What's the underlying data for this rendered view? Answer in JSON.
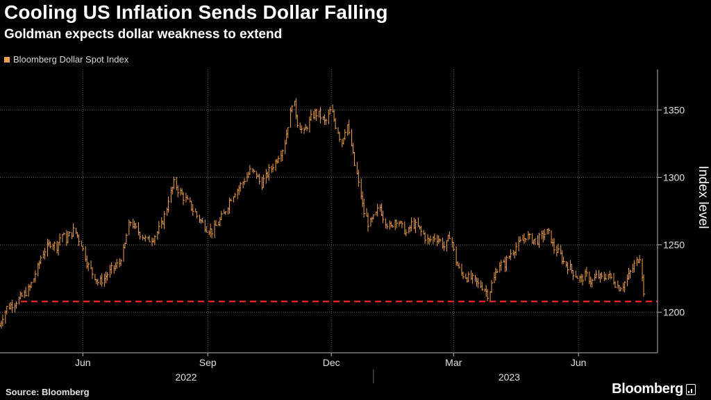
{
  "header": {
    "title": "Cooling US Inflation Sends Dollar Falling",
    "subtitle": "Goldman expects dollar weakness to extend"
  },
  "legend": {
    "label": "Bloomberg Dollar Spot Index"
  },
  "footer": {
    "source": "Source: Bloomberg",
    "brand": "Bloomberg"
  },
  "colors": {
    "series": "#f0a050",
    "reference_line": "#e02424",
    "background": "#000000",
    "grid": "#666666"
  },
  "chart_data": {
    "type": "line",
    "title": "Cooling US Inflation Sends Dollar Falling",
    "subtitle": "Goldman expects dollar weakness to extend",
    "ylabel": "Index level",
    "xlabel": "",
    "ylim": [
      1170,
      1380
    ],
    "xlim": [
      "2022-04-01",
      "2023-07-20"
    ],
    "y_ticks": [
      1200,
      1250,
      1300,
      1350
    ],
    "x_ticks": [
      {
        "label": "Jun",
        "date": "2022-06-01"
      },
      {
        "label": "Sep",
        "date": "2022-09-01"
      },
      {
        "label": "Dec",
        "date": "2022-12-01"
      },
      {
        "label": "Mar",
        "date": "2023-03-01"
      },
      {
        "label": "Jun",
        "date": "2023-06-01"
      }
    ],
    "year_labels": [
      {
        "label": "2022",
        "from": "2022-04-01",
        "to": "2022-12-31"
      },
      {
        "label": "2023",
        "from": "2023-01-01",
        "to": "2023-07-20"
      }
    ],
    "grid": true,
    "legend_position": "top-left",
    "reference_line": {
      "y": 1208,
      "style": "dashed"
    },
    "series": [
      {
        "name": "Bloomberg Dollar Spot Index",
        "style": "bars",
        "points": [
          [
            "2022-04-01",
            1190
          ],
          [
            "2022-04-06",
            1203
          ],
          [
            "2022-04-12",
            1207
          ],
          [
            "2022-04-18",
            1212
          ],
          [
            "2022-04-24",
            1219
          ],
          [
            "2022-04-28",
            1230
          ],
          [
            "2022-05-03",
            1244
          ],
          [
            "2022-05-09",
            1252
          ],
          [
            "2022-05-13",
            1249
          ],
          [
            "2022-05-17",
            1258
          ],
          [
            "2022-05-20",
            1254
          ],
          [
            "2022-05-26",
            1261
          ],
          [
            "2022-05-31",
            1252
          ],
          [
            "2022-06-04",
            1238
          ],
          [
            "2022-06-08",
            1230
          ],
          [
            "2022-06-13",
            1222
          ],
          [
            "2022-06-17",
            1225
          ],
          [
            "2022-06-23",
            1232
          ],
          [
            "2022-06-28",
            1236
          ],
          [
            "2022-07-02",
            1248
          ],
          [
            "2022-07-06",
            1268
          ],
          [
            "2022-07-10",
            1262
          ],
          [
            "2022-07-14",
            1258
          ],
          [
            "2022-07-19",
            1253
          ],
          [
            "2022-07-24",
            1256
          ],
          [
            "2022-07-28",
            1262
          ],
          [
            "2022-08-01",
            1272
          ],
          [
            "2022-08-04",
            1286
          ],
          [
            "2022-08-08",
            1296
          ],
          [
            "2022-08-11",
            1290
          ],
          [
            "2022-08-15",
            1285
          ],
          [
            "2022-08-19",
            1280
          ],
          [
            "2022-08-23",
            1274
          ],
          [
            "2022-08-27",
            1268
          ],
          [
            "2022-09-01",
            1262
          ],
          [
            "2022-09-05",
            1260
          ],
          [
            "2022-09-09",
            1266
          ],
          [
            "2022-09-13",
            1272
          ],
          [
            "2022-09-17",
            1282
          ],
          [
            "2022-09-21",
            1289
          ],
          [
            "2022-09-25",
            1293
          ],
          [
            "2022-09-29",
            1299
          ],
          [
            "2022-10-03",
            1305
          ],
          [
            "2022-10-07",
            1302
          ],
          [
            "2022-10-11",
            1295
          ],
          [
            "2022-10-15",
            1302
          ],
          [
            "2022-10-19",
            1308
          ],
          [
            "2022-10-23",
            1315
          ],
          [
            "2022-10-27",
            1322
          ],
          [
            "2022-10-31",
            1340
          ],
          [
            "2022-11-03",
            1358
          ],
          [
            "2022-11-07",
            1340
          ],
          [
            "2022-11-11",
            1333
          ],
          [
            "2022-11-15",
            1341
          ],
          [
            "2022-11-19",
            1348
          ],
          [
            "2022-11-23",
            1346
          ],
          [
            "2022-11-27",
            1340
          ],
          [
            "2022-12-01",
            1350
          ],
          [
            "2022-12-05",
            1338
          ],
          [
            "2022-12-09",
            1326
          ],
          [
            "2022-12-13",
            1340
          ],
          [
            "2022-12-17",
            1318
          ],
          [
            "2022-12-21",
            1298
          ],
          [
            "2022-12-25",
            1276
          ],
          [
            "2022-12-29",
            1265
          ],
          [
            "2023-01-02",
            1270
          ],
          [
            "2023-01-06",
            1278
          ],
          [
            "2023-01-10",
            1268
          ],
          [
            "2023-01-14",
            1262
          ],
          [
            "2023-01-18",
            1270
          ],
          [
            "2023-01-22",
            1264
          ],
          [
            "2023-01-26",
            1258
          ],
          [
            "2023-01-30",
            1266
          ],
          [
            "2023-02-03",
            1263
          ],
          [
            "2023-02-07",
            1258
          ],
          [
            "2023-02-11",
            1252
          ],
          [
            "2023-02-15",
            1256
          ],
          [
            "2023-02-19",
            1254
          ],
          [
            "2023-02-23",
            1248
          ],
          [
            "2023-02-27",
            1258
          ],
          [
            "2023-03-03",
            1238
          ],
          [
            "2023-03-07",
            1229
          ],
          [
            "2023-03-11",
            1226
          ],
          [
            "2023-03-15",
            1225
          ],
          [
            "2023-03-19",
            1221
          ],
          [
            "2023-03-23",
            1219
          ],
          [
            "2023-03-27",
            1213
          ],
          [
            "2023-03-31",
            1225
          ],
          [
            "2023-04-04",
            1236
          ],
          [
            "2023-04-08",
            1235
          ],
          [
            "2023-04-12",
            1243
          ],
          [
            "2023-04-16",
            1248
          ],
          [
            "2023-04-20",
            1252
          ],
          [
            "2023-04-24",
            1257
          ],
          [
            "2023-04-28",
            1254
          ],
          [
            "2023-05-02",
            1253
          ],
          [
            "2023-05-06",
            1257
          ],
          [
            "2023-05-10",
            1260
          ],
          [
            "2023-05-14",
            1248
          ],
          [
            "2023-05-18",
            1244
          ],
          [
            "2023-05-22",
            1237
          ],
          [
            "2023-05-26",
            1233
          ],
          [
            "2023-05-30",
            1228
          ],
          [
            "2023-06-03",
            1224
          ],
          [
            "2023-06-07",
            1228
          ],
          [
            "2023-06-11",
            1222
          ],
          [
            "2023-06-15",
            1227
          ],
          [
            "2023-06-19",
            1225
          ],
          [
            "2023-06-23",
            1228
          ],
          [
            "2023-06-27",
            1224
          ],
          [
            "2023-07-01",
            1218
          ],
          [
            "2023-07-05",
            1221
          ],
          [
            "2023-07-09",
            1228
          ],
          [
            "2023-07-13",
            1236
          ],
          [
            "2023-07-17",
            1242
          ],
          [
            "2023-07-20",
            1208
          ]
        ]
      }
    ]
  }
}
